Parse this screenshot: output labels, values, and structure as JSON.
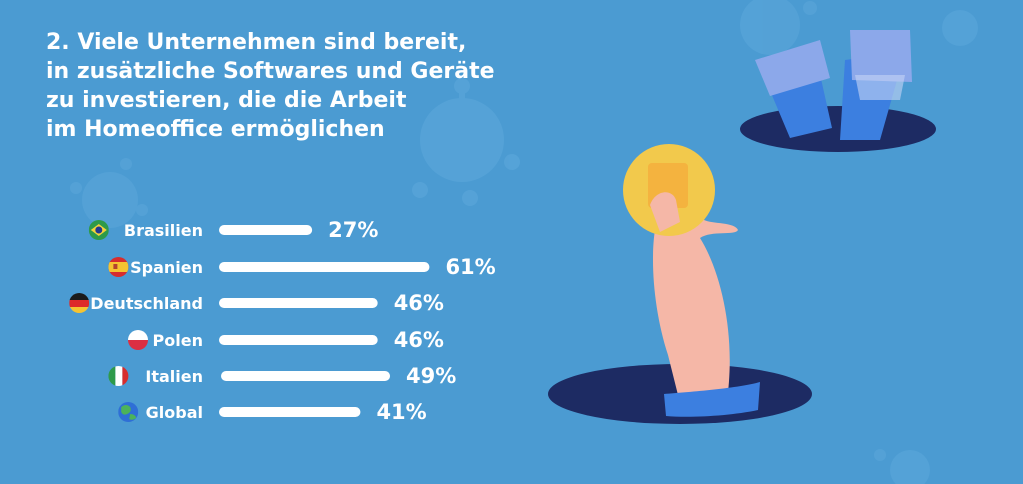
{
  "header": {
    "title_lines": [
      "2. Viele Unternehmen sind bereit,",
      "in zusätzliche Softwares und Geräte",
      "zu investieren, die die Arbeit",
      "im Homeoffice ermöglichen"
    ]
  },
  "chart_data": {
    "type": "bar",
    "orientation": "horizontal",
    "categories": [
      "Brasilien",
      "Spanien",
      "Deutschland",
      "Polen",
      "Italien",
      "Global"
    ],
    "values": [
      27,
      61,
      46,
      46,
      49,
      41
    ],
    "value_labels": [
      "27%",
      "61%",
      "46%",
      "46%",
      "49%",
      "41%"
    ],
    "unit": "%",
    "flags": [
      "brazil-flag-icon",
      "spain-flag-icon",
      "germany-flag-icon",
      "poland-flag-icon",
      "italy-flag-icon",
      "globe-icon"
    ],
    "bar_color": "#ffffff",
    "grid": false,
    "legend": "none"
  },
  "colors": {
    "background": "#4b9bd2",
    "hole": "#1d2b63",
    "coin": "#f2c94c",
    "skin": "#f5b7a7",
    "sleeve": "#3c7fe0"
  }
}
